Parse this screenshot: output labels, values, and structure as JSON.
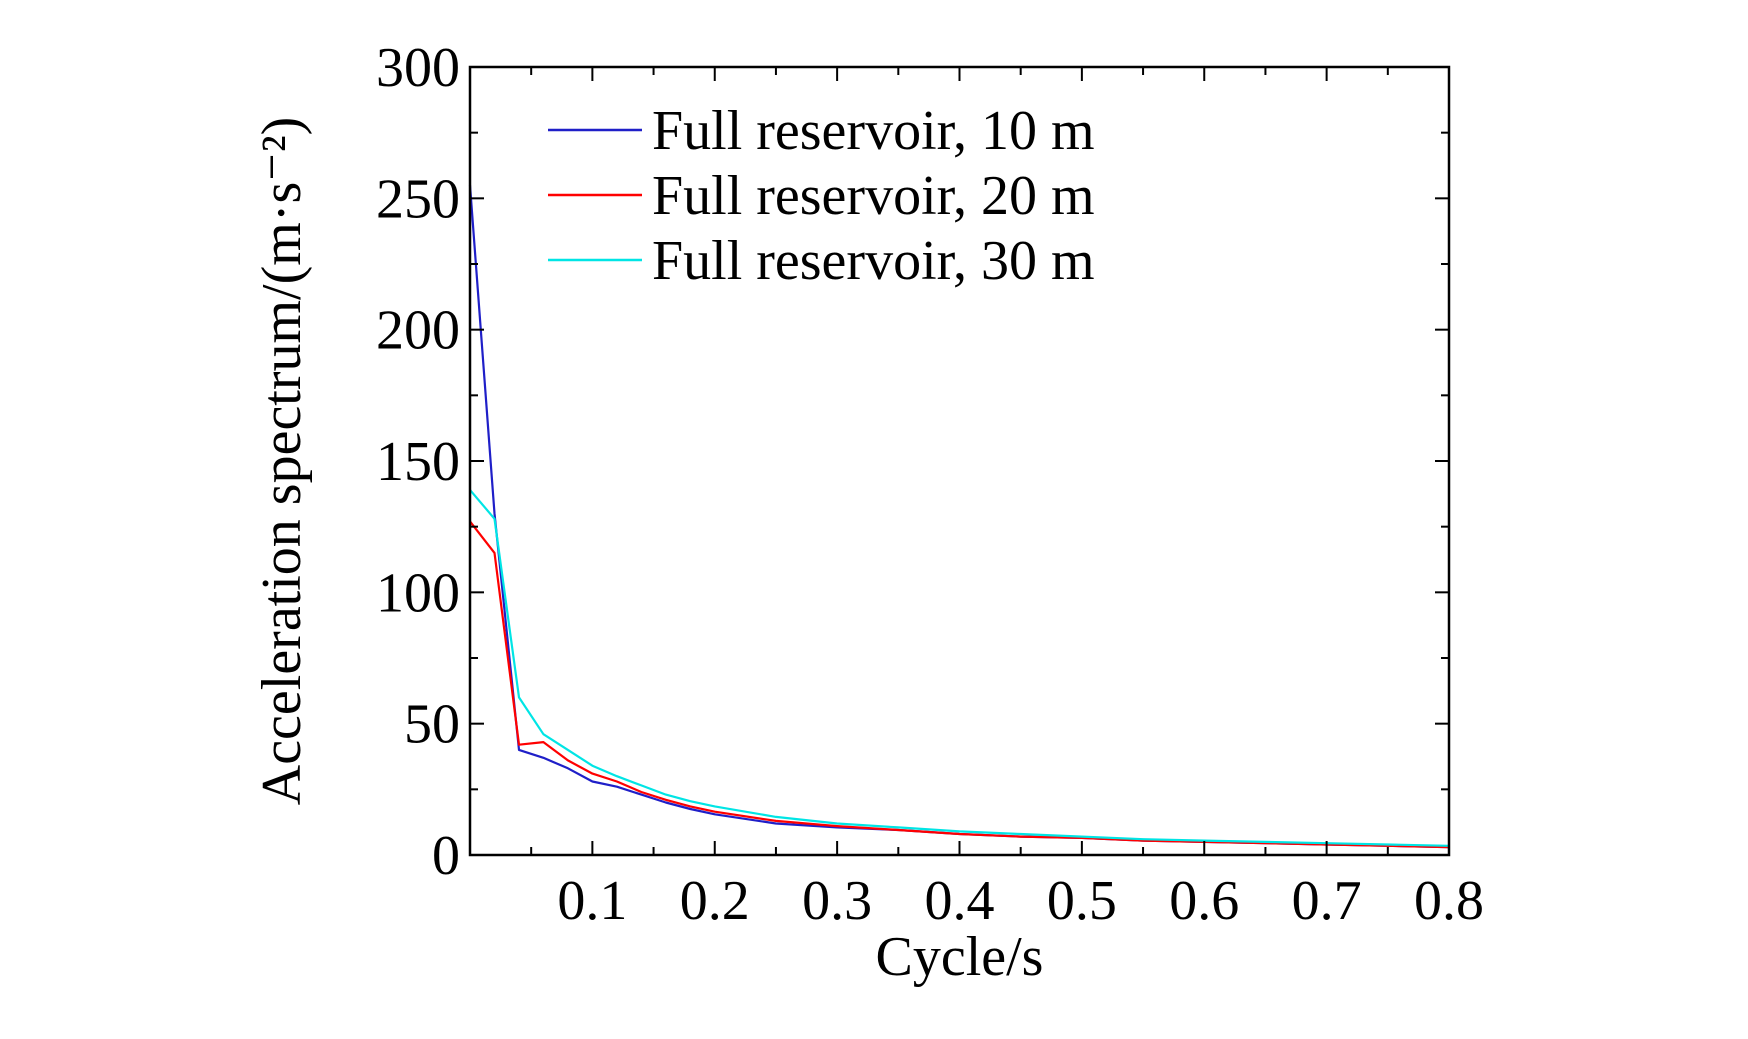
{
  "chart_data": {
    "type": "line",
    "title": "",
    "xlabel": "Cycle/s",
    "ylabel": "Acceleration spectrum/(m·s⁻²)",
    "xlim": [
      0.0,
      0.8
    ],
    "ylim": [
      0,
      300
    ],
    "xticks": [
      0.1,
      0.2,
      0.3,
      0.4,
      0.5,
      0.6,
      0.7,
      0.8
    ],
    "xtick_labels": [
      "0.1",
      "0.2",
      "0.3",
      "0.4",
      "0.5",
      "0.6",
      "0.7",
      "0.8"
    ],
    "xminor": [
      0.05,
      0.15,
      0.25,
      0.35,
      0.45,
      0.55,
      0.65,
      0.75
    ],
    "yticks": [
      0,
      50,
      100,
      150,
      200,
      250,
      300
    ],
    "ytick_labels": [
      "0",
      "50",
      "100",
      "150",
      "200",
      "250",
      "300"
    ],
    "yminor": [
      25,
      75,
      125,
      175,
      225,
      275
    ],
    "grid": false,
    "legend_position": "top-left",
    "series": [
      {
        "name": "Full reservoir, 10 m",
        "color": "#1f1fc8",
        "x": [
          0.0,
          0.02,
          0.04,
          0.06,
          0.08,
          0.1,
          0.12,
          0.14,
          0.16,
          0.18,
          0.2,
          0.25,
          0.3,
          0.35,
          0.4,
          0.45,
          0.5,
          0.55,
          0.6,
          0.65,
          0.7,
          0.75,
          0.8
        ],
        "y": [
          255,
          130,
          40,
          37,
          33,
          28,
          26,
          23,
          20,
          17.5,
          15.5,
          12,
          10.5,
          9.5,
          8,
          7,
          6.5,
          5.5,
          5,
          4.5,
          4,
          3.5,
          3
        ]
      },
      {
        "name": "Full reservoir, 20 m",
        "color": "#ff0000",
        "x": [
          0.0,
          0.02,
          0.04,
          0.06,
          0.08,
          0.1,
          0.12,
          0.14,
          0.16,
          0.18,
          0.2,
          0.25,
          0.3,
          0.35,
          0.4,
          0.45,
          0.5,
          0.55,
          0.6,
          0.65,
          0.7,
          0.75,
          0.8
        ],
        "y": [
          127,
          115,
          42,
          43,
          36,
          31,
          28,
          24,
          21,
          18.5,
          16.5,
          13,
          11,
          9.5,
          8,
          7,
          6.5,
          5.5,
          5,
          4.5,
          4,
          3.5,
          3
        ]
      },
      {
        "name": "Full reservoir, 30 m",
        "color": "#00e5e5",
        "x": [
          0.0,
          0.02,
          0.04,
          0.06,
          0.08,
          0.1,
          0.12,
          0.14,
          0.16,
          0.18,
          0.2,
          0.25,
          0.3,
          0.35,
          0.4,
          0.45,
          0.5,
          0.55,
          0.6,
          0.65,
          0.7,
          0.75,
          0.8
        ],
        "y": [
          139,
          128,
          60,
          46,
          40,
          34,
          30,
          26.5,
          23,
          20.5,
          18.5,
          14.5,
          12,
          10.5,
          9,
          8,
          7,
          6,
          5.5,
          5,
          4.5,
          4,
          3.5
        ]
      }
    ]
  }
}
